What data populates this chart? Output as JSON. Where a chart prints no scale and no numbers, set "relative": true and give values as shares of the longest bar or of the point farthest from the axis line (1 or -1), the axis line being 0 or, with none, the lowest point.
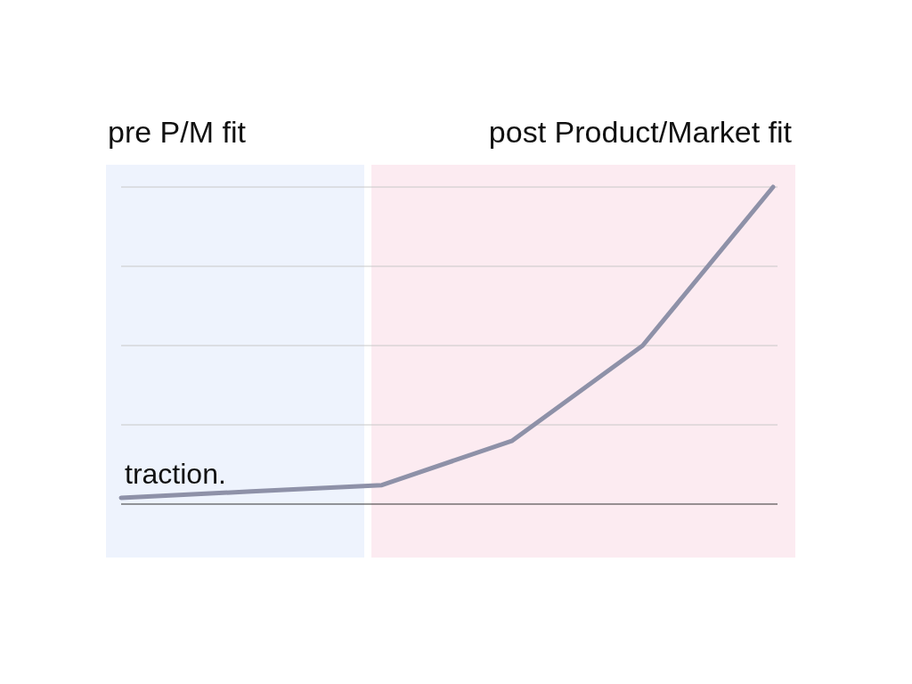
{
  "chart_data": {
    "type": "line",
    "relative": true,
    "categories": [
      null,
      null,
      null,
      null,
      null,
      null
    ],
    "grid": "y",
    "series": [
      {
        "name": "traction.",
        "color": "#8e91a8",
        "values": [
          0.02,
          0.04,
          0.06,
          0.2,
          0.5,
          1
        ]
      }
    ],
    "annotations": [
      "pre P/M fit",
      "post Product/Market fit"
    ]
  }
}
